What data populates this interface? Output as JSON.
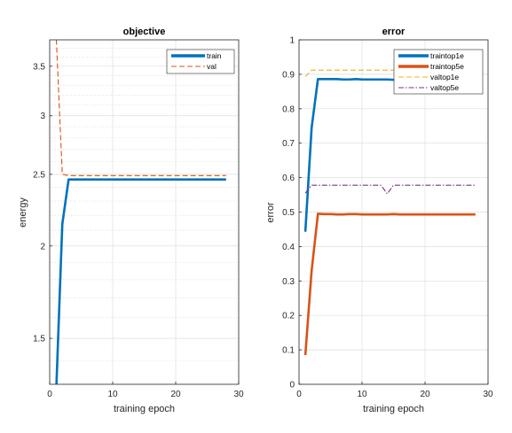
{
  "chart_data": [
    {
      "type": "line",
      "title": "objective",
      "xlabel": "training epoch",
      "ylabel": "energy",
      "xlim": [
        0,
        30
      ],
      "ylim": [
        1.3,
        3.8
      ],
      "yscale": "log",
      "xticks": [
        0,
        10,
        20,
        30
      ],
      "yticks": [
        1.5,
        2,
        2.5,
        3,
        3.5
      ],
      "grid": true,
      "legend_position": "top-right",
      "series": [
        {
          "name": "train",
          "color": "#0072BD",
          "style": "solid",
          "x": [
            1,
            2,
            3,
            4,
            5,
            6,
            7,
            8,
            9,
            10,
            11,
            12,
            13,
            14,
            15,
            16,
            17,
            18,
            19,
            20,
            21,
            22,
            23,
            24,
            25,
            26,
            27,
            28
          ],
          "y": [
            1.25,
            2.14,
            2.46,
            2.46,
            2.46,
            2.46,
            2.46,
            2.46,
            2.46,
            2.46,
            2.46,
            2.46,
            2.46,
            2.46,
            2.46,
            2.46,
            2.46,
            2.46,
            2.46,
            2.46,
            2.46,
            2.46,
            2.46,
            2.46,
            2.46,
            2.46,
            2.46,
            2.46
          ]
        },
        {
          "name": "val",
          "color": "#D95319",
          "style": "dashed",
          "x": [
            1,
            2,
            3,
            4,
            5,
            6,
            7,
            8,
            9,
            10,
            11,
            12,
            13,
            14,
            15,
            16,
            17,
            18,
            19,
            20,
            21,
            22,
            23,
            24,
            25,
            26,
            27,
            28
          ],
          "y": [
            3.9,
            2.5,
            2.49,
            2.49,
            2.49,
            2.49,
            2.49,
            2.49,
            2.49,
            2.49,
            2.49,
            2.49,
            2.49,
            2.49,
            2.49,
            2.49,
            2.49,
            2.49,
            2.49,
            2.49,
            2.49,
            2.49,
            2.49,
            2.49,
            2.49,
            2.49,
            2.49,
            2.49
          ]
        }
      ]
    },
    {
      "type": "line",
      "title": "error",
      "xlabel": "training epoch",
      "ylabel": "error",
      "xlim": [
        0,
        30
      ],
      "ylim": [
        0,
        1
      ],
      "yscale": "linear",
      "xticks": [
        0,
        10,
        20,
        30
      ],
      "yticks": [
        0,
        0.1,
        0.2,
        0.3,
        0.4,
        0.5,
        0.6,
        0.7,
        0.8,
        0.9,
        1
      ],
      "grid": true,
      "legend_position": "top-right",
      "series": [
        {
          "name": "traintop1e",
          "color": "#0072BD",
          "style": "solid",
          "x": [
            1,
            2,
            3,
            4,
            5,
            6,
            7,
            8,
            9,
            10,
            11,
            12,
            13,
            14,
            15,
            16,
            17,
            18,
            19,
            20,
            21,
            22,
            23,
            24,
            25,
            26,
            27,
            28
          ],
          "y": [
            0.443,
            0.745,
            0.886,
            0.886,
            0.886,
            0.886,
            0.885,
            0.885,
            0.886,
            0.885,
            0.885,
            0.885,
            0.885,
            0.885,
            0.884,
            0.885,
            0.885,
            0.885,
            0.885,
            0.885,
            0.885,
            0.885,
            0.885,
            0.885,
            0.885,
            0.885,
            0.885,
            0.885
          ]
        },
        {
          "name": "traintop5e",
          "color": "#D95319",
          "style": "solid",
          "x": [
            1,
            2,
            3,
            4,
            5,
            6,
            7,
            8,
            9,
            10,
            11,
            12,
            13,
            14,
            15,
            16,
            17,
            18,
            19,
            20,
            21,
            22,
            23,
            24,
            25,
            26,
            27,
            28
          ],
          "y": [
            0.085,
            0.33,
            0.495,
            0.494,
            0.494,
            0.493,
            0.493,
            0.494,
            0.494,
            0.493,
            0.493,
            0.493,
            0.493,
            0.493,
            0.494,
            0.493,
            0.493,
            0.493,
            0.493,
            0.493,
            0.493,
            0.493,
            0.493,
            0.493,
            0.493,
            0.493,
            0.493,
            0.493
          ]
        },
        {
          "name": "valtop1e",
          "color": "#EDB120",
          "style": "dashed",
          "x": [
            1,
            2,
            3,
            4,
            5,
            6,
            7,
            8,
            9,
            10,
            11,
            12,
            13,
            14,
            15,
            16,
            17,
            18,
            19,
            20,
            21,
            22,
            23,
            24,
            25,
            26,
            27,
            28
          ],
          "y": [
            0.893,
            0.912,
            0.912,
            0.912,
            0.912,
            0.912,
            0.912,
            0.912,
            0.912,
            0.912,
            0.912,
            0.912,
            0.912,
            0.912,
            0.912,
            0.912,
            0.912,
            0.912,
            0.912,
            0.912,
            0.912,
            0.912,
            0.912,
            0.912,
            0.912,
            0.912,
            0.912,
            0.912
          ]
        },
        {
          "name": "valtop5e",
          "color": "#7E2F8E",
          "style": "dashdot",
          "x": [
            1,
            2,
            3,
            4,
            5,
            6,
            7,
            8,
            9,
            10,
            11,
            12,
            13,
            14,
            15,
            16,
            17,
            18,
            19,
            20,
            21,
            22,
            23,
            24,
            25,
            26,
            27,
            28
          ],
          "y": [
            0.555,
            0.578,
            0.578,
            0.578,
            0.578,
            0.578,
            0.578,
            0.578,
            0.578,
            0.578,
            0.578,
            0.578,
            0.578,
            0.553,
            0.578,
            0.578,
            0.578,
            0.578,
            0.578,
            0.578,
            0.578,
            0.578,
            0.578,
            0.578,
            0.578,
            0.578,
            0.578,
            0.578
          ]
        }
      ]
    }
  ]
}
